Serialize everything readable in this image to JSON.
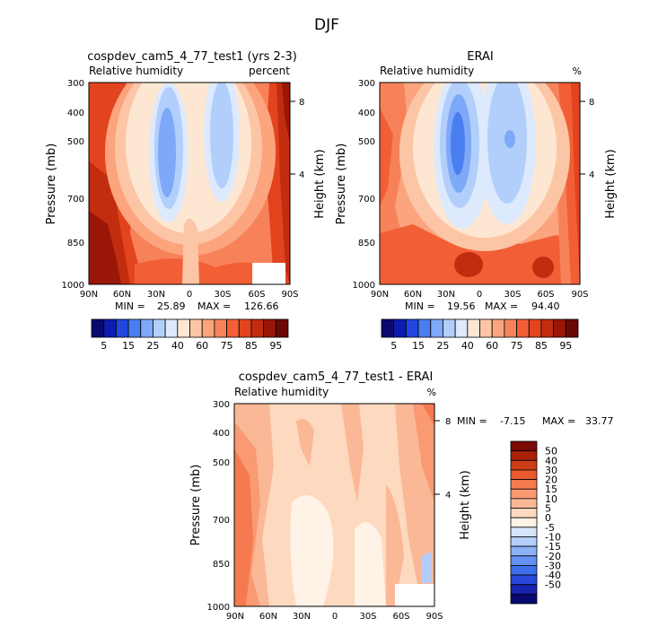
{
  "figure": {
    "title": "DJF"
  },
  "colors": {
    "rh_levels": [
      "#0a0a6e",
      "#0c1cb0",
      "#2048e0",
      "#4a7ef0",
      "#7ea8f8",
      "#b2cffb",
      "#dde9fd",
      "#fde7d2",
      "#fcc6a6",
      "#fba47e",
      "#f7825a",
      "#f25f36",
      "#e2441e",
      "#c22d10",
      "#9a1708",
      "#6c0804"
    ],
    "diff_levels": [
      "#080870",
      "#1a23b0",
      "#2848dc",
      "#3f6fea",
      "#6490f2",
      "#8db0f7",
      "#b4cdfa",
      "#d7e5fc",
      "#fff2e6",
      "#fdd9bf",
      "#fbb896",
      "#f99a72",
      "#f57a4f",
      "#e95a2f",
      "#cd3d17",
      "#a82108",
      "#7a0b04"
    ]
  },
  "chart_data": [
    {
      "id": "model",
      "type": "contour",
      "title": "cospdev_cam5_4_77_test1 (yrs 2-3)",
      "subtitle_left": "Relative humidity",
      "subtitle_right": "percent",
      "ylabel": "Pressure (mb)",
      "y2label": "Height (km)",
      "x_ticks": [
        "90N",
        "60N",
        "30N",
        "0",
        "30S",
        "60S",
        "90S"
      ],
      "x_values": [
        90,
        60,
        30,
        0,
        -30,
        -60,
        -90
      ],
      "y_ticks": [
        "300",
        "400",
        "500",
        "700",
        "850",
        "1000"
      ],
      "y_values": [
        300,
        400,
        500,
        700,
        850,
        1000
      ],
      "y2_ticks": [
        "8",
        "4"
      ],
      "y2_values": [
        8,
        4
      ],
      "stats": {
        "min_label": "MIN =",
        "min": "25.89",
        "max_label": "MAX =",
        "max": "126.66"
      },
      "colorbar": {
        "labels": [
          "5",
          "15",
          "25",
          "40",
          "60",
          "75",
          "85",
          "95"
        ]
      }
    },
    {
      "id": "obs",
      "type": "contour",
      "title": "ERAI",
      "subtitle_left": "Relative humidity",
      "subtitle_right": "%",
      "ylabel": "Pressure (mb)",
      "y2label": "Height (km)",
      "x_ticks": [
        "90N",
        "60N",
        "30N",
        "0",
        "30S",
        "60S",
        "90S"
      ],
      "x_values": [
        90,
        60,
        30,
        0,
        -30,
        -60,
        -90
      ],
      "y_ticks": [
        "300",
        "400",
        "500",
        "700",
        "850",
        "1000"
      ],
      "y_values": [
        300,
        400,
        500,
        700,
        850,
        1000
      ],
      "y2_ticks": [
        "8",
        "4"
      ],
      "y2_values": [
        8,
        4
      ],
      "stats": {
        "min_label": "MIN =",
        "min": "19.56",
        "max_label": "MAX =",
        "max": "94.40"
      },
      "colorbar": {
        "labels": [
          "5",
          "15",
          "25",
          "40",
          "60",
          "75",
          "85",
          "95"
        ]
      }
    },
    {
      "id": "diff",
      "type": "contour",
      "title": "cospdev_cam5_4_77_test1 - ERAI",
      "subtitle_left": "Relative humidity",
      "subtitle_right": "%",
      "ylabel": "Pressure (mb)",
      "y2label": "Height (km)",
      "x_ticks": [
        "90N",
        "60N",
        "30N",
        "0",
        "30S",
        "60S",
        "90S"
      ],
      "x_values": [
        90,
        60,
        30,
        0,
        -30,
        -60,
        -90
      ],
      "y_ticks": [
        "300",
        "400",
        "500",
        "700",
        "850",
        "1000"
      ],
      "y_values": [
        300,
        400,
        500,
        700,
        850,
        1000
      ],
      "y2_ticks": [
        "8",
        "4"
      ],
      "y2_values": [
        8,
        4
      ],
      "stats": {
        "min_label": "MIN =",
        "min": "-7.15",
        "max_label": "MAX =",
        "max": "33.77"
      },
      "colorbar": {
        "labels": [
          "50",
          "40",
          "30",
          "20",
          "15",
          "10",
          "5",
          "0",
          "-5",
          "-10",
          "-15",
          "-20",
          "-30",
          "-40",
          "-50"
        ]
      }
    }
  ]
}
